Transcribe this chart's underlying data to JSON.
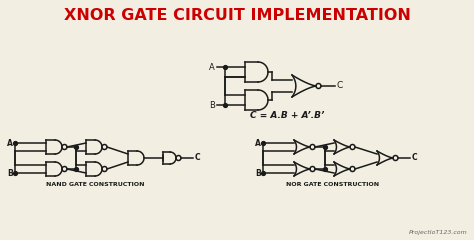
{
  "title": "XNOR GATE CIRCUIT IMPLEMENTATION",
  "title_color": "#CC0000",
  "title_fontsize": 11.5,
  "bg_color": "#f2efe2",
  "line_color": "#1a1a1a",
  "formula": "C = A.B + A’.B’",
  "nand_label": "NAND GATE CONSTRUCTION",
  "nor_label": "NOR GATE CONSTRUCTION",
  "watermark": "ProjectIoT123.com"
}
